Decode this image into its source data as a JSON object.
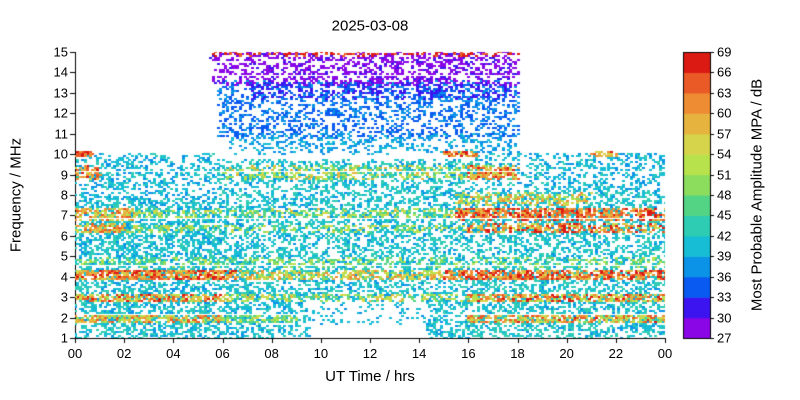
{
  "chart_data": {
    "type": "heatmap",
    "title": "2025-03-08",
    "xlabel": "UT Time / hrs",
    "ylabel": "Frequency / MHz",
    "xlim": [
      0,
      24
    ],
    "ylim": [
      1,
      15
    ],
    "grid": false,
    "x_ticks": [
      {
        "v": 0,
        "label": "00"
      },
      {
        "v": 2,
        "label": "02"
      },
      {
        "v": 4,
        "label": "04"
      },
      {
        "v": 6,
        "label": "06"
      },
      {
        "v": 8,
        "label": "08"
      },
      {
        "v": 10,
        "label": "10"
      },
      {
        "v": 12,
        "label": "12"
      },
      {
        "v": 14,
        "label": "14"
      },
      {
        "v": 16,
        "label": "16"
      },
      {
        "v": 18,
        "label": "18"
      },
      {
        "v": 20,
        "label": "20"
      },
      {
        "v": 22,
        "label": "22"
      },
      {
        "v": 24,
        "label": "00"
      }
    ],
    "y_ticks": [
      1,
      2,
      3,
      4,
      5,
      6,
      7,
      8,
      9,
      10,
      11,
      12,
      13,
      14,
      15
    ],
    "colorbar": {
      "label": "Most Probable Amplitude MPA / dB",
      "min": 27,
      "max": 69,
      "step": 3,
      "ticks": [
        27,
        30,
        33,
        36,
        39,
        42,
        45,
        48,
        51,
        54,
        57,
        60,
        63,
        66,
        69
      ],
      "colors": [
        "#8a06e6",
        "#3c14f0",
        "#085af0",
        "#0b93e8",
        "#16bdd4",
        "#2fccb4",
        "#52d484",
        "#8cdc5e",
        "#b8e24c",
        "#d6d44a",
        "#e6b43e",
        "#ee8c34",
        "#ea5a26",
        "#dc1a14"
      ]
    },
    "marker": {
      "w": 3,
      "h": 2
    },
    "regions_note": "Each region: UT time range t0-t1 (hrs), frequency range f0-f1 (MHz), amplitude range a0-a1 (dB), n scatter points",
    "regions": [
      {
        "t0": 0,
        "t1": 5.7,
        "f0": 1,
        "f1": 7.8,
        "a0": 38,
        "a1": 44,
        "n": 2800
      },
      {
        "t0": 0,
        "t1": 5.7,
        "f0": 7.8,
        "f1": 10,
        "a0": 37,
        "a1": 43,
        "n": 520
      },
      {
        "t0": 5.7,
        "t1": 16,
        "f0": 2.9,
        "f1": 9.7,
        "a0": 38,
        "a1": 44,
        "n": 3600
      },
      {
        "t0": 5.7,
        "t1": 9.5,
        "f0": 1,
        "f1": 2.9,
        "a0": 38,
        "a1": 43,
        "n": 380
      },
      {
        "t0": 14.3,
        "t1": 16,
        "f0": 1,
        "f1": 2.9,
        "a0": 38,
        "a1": 43,
        "n": 200
      },
      {
        "t0": 9.5,
        "t1": 14.3,
        "f0": 1.7,
        "f1": 2.9,
        "a0": 38,
        "a1": 42,
        "n": 90
      },
      {
        "t0": 16,
        "t1": 24,
        "f0": 1,
        "f1": 8.2,
        "a0": 38,
        "a1": 45,
        "n": 3100
      },
      {
        "t0": 16,
        "t1": 24,
        "f0": 8.2,
        "f1": 10,
        "a0": 37,
        "a1": 43,
        "n": 560
      },
      {
        "t0": 5.8,
        "t1": 18,
        "f0": 10.8,
        "f1": 13.6,
        "a0": 33,
        "a1": 38,
        "n": 1500
      },
      {
        "t0": 6.3,
        "t1": 18,
        "f0": 10,
        "f1": 11,
        "a0": 36,
        "a1": 41,
        "n": 380
      },
      {
        "t0": 5.5,
        "t1": 18,
        "f0": 13.4,
        "f1": 15,
        "a0": 27,
        "a1": 31,
        "n": 1050
      },
      {
        "t0": 7,
        "t1": 18,
        "f0": 12.7,
        "f1": 13.5,
        "a0": 30,
        "a1": 34,
        "n": 280
      },
      {
        "t0": 5.5,
        "t1": 18,
        "f0": 14.8,
        "f1": 15,
        "a0": 63,
        "a1": 69,
        "n": 120
      },
      {
        "t0": 0,
        "t1": 6,
        "f0": 1.75,
        "f1": 2.15,
        "a0": 48,
        "a1": 66,
        "n": 250
      },
      {
        "t0": 16,
        "t1": 24,
        "f0": 1.75,
        "f1": 2.15,
        "a0": 48,
        "a1": 67,
        "n": 330
      },
      {
        "t0": 6,
        "t1": 9,
        "f0": 1.75,
        "f1": 2.15,
        "a0": 45,
        "a1": 55,
        "n": 80
      },
      {
        "t0": 0,
        "t1": 6,
        "f0": 2.75,
        "f1": 3.15,
        "a0": 50,
        "a1": 69,
        "n": 270
      },
      {
        "t0": 16,
        "t1": 24,
        "f0": 2.75,
        "f1": 3.15,
        "a0": 50,
        "a1": 69,
        "n": 370
      },
      {
        "t0": 6,
        "t1": 16,
        "f0": 2.8,
        "f1": 3.15,
        "a0": 45,
        "a1": 58,
        "n": 190
      },
      {
        "t0": 0,
        "t1": 6.5,
        "f0": 3.85,
        "f1": 4.35,
        "a0": 55,
        "a1": 69,
        "n": 420
      },
      {
        "t0": 6.5,
        "t1": 15,
        "f0": 3.85,
        "f1": 4.3,
        "a0": 48,
        "a1": 62,
        "n": 290
      },
      {
        "t0": 15,
        "t1": 24,
        "f0": 3.85,
        "f1": 4.35,
        "a0": 56,
        "a1": 69,
        "n": 520
      },
      {
        "t0": 0,
        "t1": 24,
        "f0": 4.5,
        "f1": 4.9,
        "a0": 45,
        "a1": 54,
        "n": 340
      },
      {
        "t0": 0,
        "t1": 2,
        "f0": 6.15,
        "f1": 6.6,
        "a0": 52,
        "a1": 66,
        "n": 110
      },
      {
        "t0": 16,
        "t1": 24,
        "f0": 6.15,
        "f1": 6.6,
        "a0": 52,
        "a1": 69,
        "n": 290
      },
      {
        "t0": 2,
        "t1": 16,
        "f0": 6.2,
        "f1": 6.55,
        "a0": 45,
        "a1": 56,
        "n": 190
      },
      {
        "t0": 0,
        "t1": 2.5,
        "f0": 6.8,
        "f1": 7.35,
        "a0": 50,
        "a1": 66,
        "n": 130
      },
      {
        "t0": 2.5,
        "t1": 15.5,
        "f0": 6.85,
        "f1": 7.3,
        "a0": 45,
        "a1": 58,
        "n": 250
      },
      {
        "t0": 15.5,
        "t1": 24,
        "f0": 6.8,
        "f1": 7.35,
        "a0": 57,
        "a1": 69,
        "n": 520
      },
      {
        "t0": 15.5,
        "t1": 21,
        "f0": 7.5,
        "f1": 8.1,
        "a0": 48,
        "a1": 62,
        "n": 210
      },
      {
        "t0": 0,
        "t1": 1,
        "f0": 8.8,
        "f1": 9.4,
        "a0": 55,
        "a1": 68,
        "n": 60
      },
      {
        "t0": 6,
        "t1": 18,
        "f0": 8.8,
        "f1": 9.4,
        "a0": 46,
        "a1": 60,
        "n": 320
      },
      {
        "t0": 16,
        "t1": 18,
        "f0": 8.8,
        "f1": 9.4,
        "a0": 55,
        "a1": 69,
        "n": 110
      },
      {
        "t0": 0,
        "t1": 0.7,
        "f0": 9.85,
        "f1": 10.15,
        "a0": 58,
        "a1": 69,
        "n": 35
      },
      {
        "t0": 15,
        "t1": 16.3,
        "f0": 9.85,
        "f1": 10.15,
        "a0": 55,
        "a1": 69,
        "n": 45
      },
      {
        "t0": 21,
        "t1": 22.2,
        "f0": 9.85,
        "f1": 10.15,
        "a0": 55,
        "a1": 68,
        "n": 25
      }
    ]
  }
}
